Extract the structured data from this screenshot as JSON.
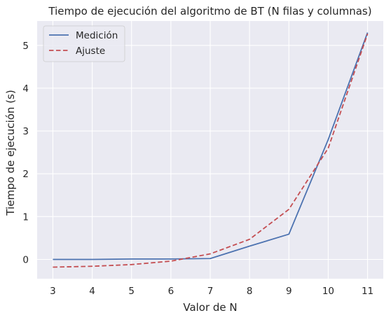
{
  "chart_data": {
    "type": "line",
    "title": "Tiempo de ejecución del algoritmo de BT (N filas y columnas)",
    "xlabel": "Valor de N",
    "ylabel": "Tiempo de ejecución (s)",
    "x": [
      3,
      4,
      5,
      6,
      7,
      8,
      9,
      10,
      11
    ],
    "xlim": [
      2.6,
      11.4
    ],
    "ylim": [
      -0.45,
      5.57
    ],
    "xticks": [
      "3",
      "4",
      "5",
      "6",
      "7",
      "8",
      "9",
      "10",
      "11"
    ],
    "yticks": [
      "0",
      "1",
      "2",
      "3",
      "4",
      "5"
    ],
    "grid": true,
    "legend_position": "top-left",
    "series": [
      {
        "name": "Medición",
        "color": "#4c72b0",
        "style": "solid",
        "values": [
          0.0,
          0.0,
          0.01,
          0.01,
          0.02,
          0.31,
          0.59,
          2.8,
          5.3
        ]
      },
      {
        "name": "Ajuste",
        "color": "#c44e52",
        "style": "dashed",
        "values": [
          -0.18,
          -0.16,
          -0.12,
          -0.04,
          0.13,
          0.47,
          1.17,
          2.6,
          5.27
        ]
      }
    ]
  },
  "colors": {
    "plot_background": "#eaeaf2",
    "grid": "#ffffff",
    "text": "#262626"
  }
}
